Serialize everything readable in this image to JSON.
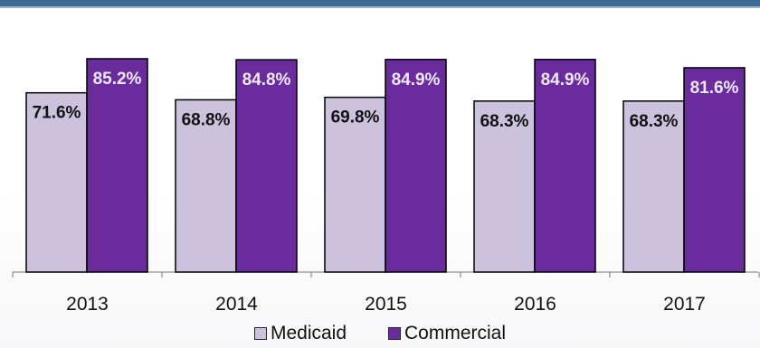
{
  "chart_data": {
    "type": "bar",
    "categories": [
      "2013",
      "2014",
      "2015",
      "2016",
      "2017"
    ],
    "series": [
      {
        "name": "Medicaid",
        "values": [
          71.6,
          68.8,
          69.8,
          68.3,
          68.3
        ],
        "labels": [
          "71.6%",
          "68.8%",
          "69.8%",
          "68.3%",
          "68.3%"
        ],
        "color": "#ccc2dd"
      },
      {
        "name": "Commercial",
        "values": [
          85.2,
          84.8,
          84.9,
          84.9,
          81.6
        ],
        "labels": [
          "85.2%",
          "84.8%",
          "84.9%",
          "84.9%",
          "81.6%"
        ],
        "color": "#6a2c9c"
      }
    ],
    "ylim": [
      0,
      100
    ],
    "grid": false,
    "legend_position": "bottom",
    "medicaid_label_color": "#111111",
    "commercial_label_color": "#f0e8ff"
  },
  "colors": {
    "axis": "#777777",
    "outline": "#000000"
  }
}
